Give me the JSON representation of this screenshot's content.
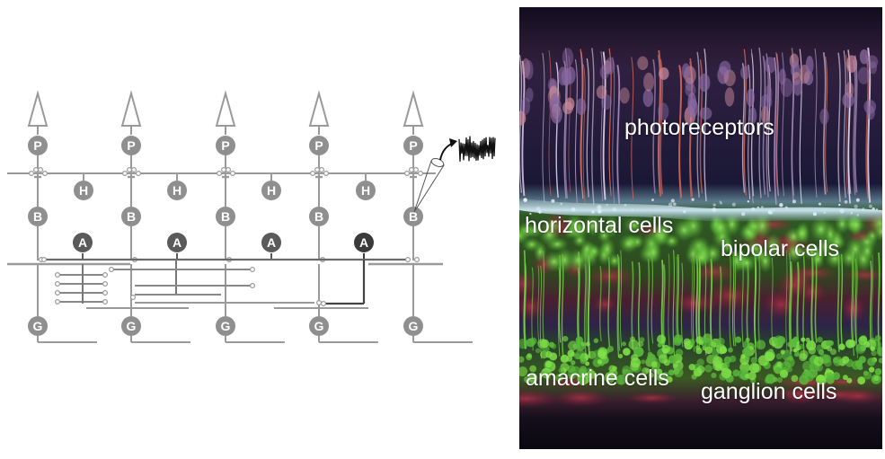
{
  "diagram": {
    "cell_letters": {
      "photoreceptor": "P",
      "horizontal": "H",
      "bipolar": "B",
      "amacrine": "A",
      "ganglion": "G"
    },
    "columns": 5,
    "horizontal_cells": 4,
    "amacrine_cells": 4,
    "colors": {
      "line": "#9a9a9a",
      "cell": "#8f8f8f",
      "amacrine_dark": "#5a5a5a",
      "amacrine_darkest": "#3a3a3a",
      "trace": "#111111"
    }
  },
  "micrograph": {
    "labels": {
      "photoreceptors": "photoreceptors",
      "horizontal_cells": "horizontal cells",
      "bipolar_cells": "bipolar cells",
      "amacrine_cells": "amacrine cells",
      "ganglion_cells": "ganglion cells"
    },
    "colors": {
      "background": "#0e0c1c",
      "photoreceptor_layer": "#3a2a4a",
      "outer_plexiform": "#cfe8f0",
      "green_cells": "#5cc83a",
      "red_tissue": "#8a2a3a"
    }
  }
}
